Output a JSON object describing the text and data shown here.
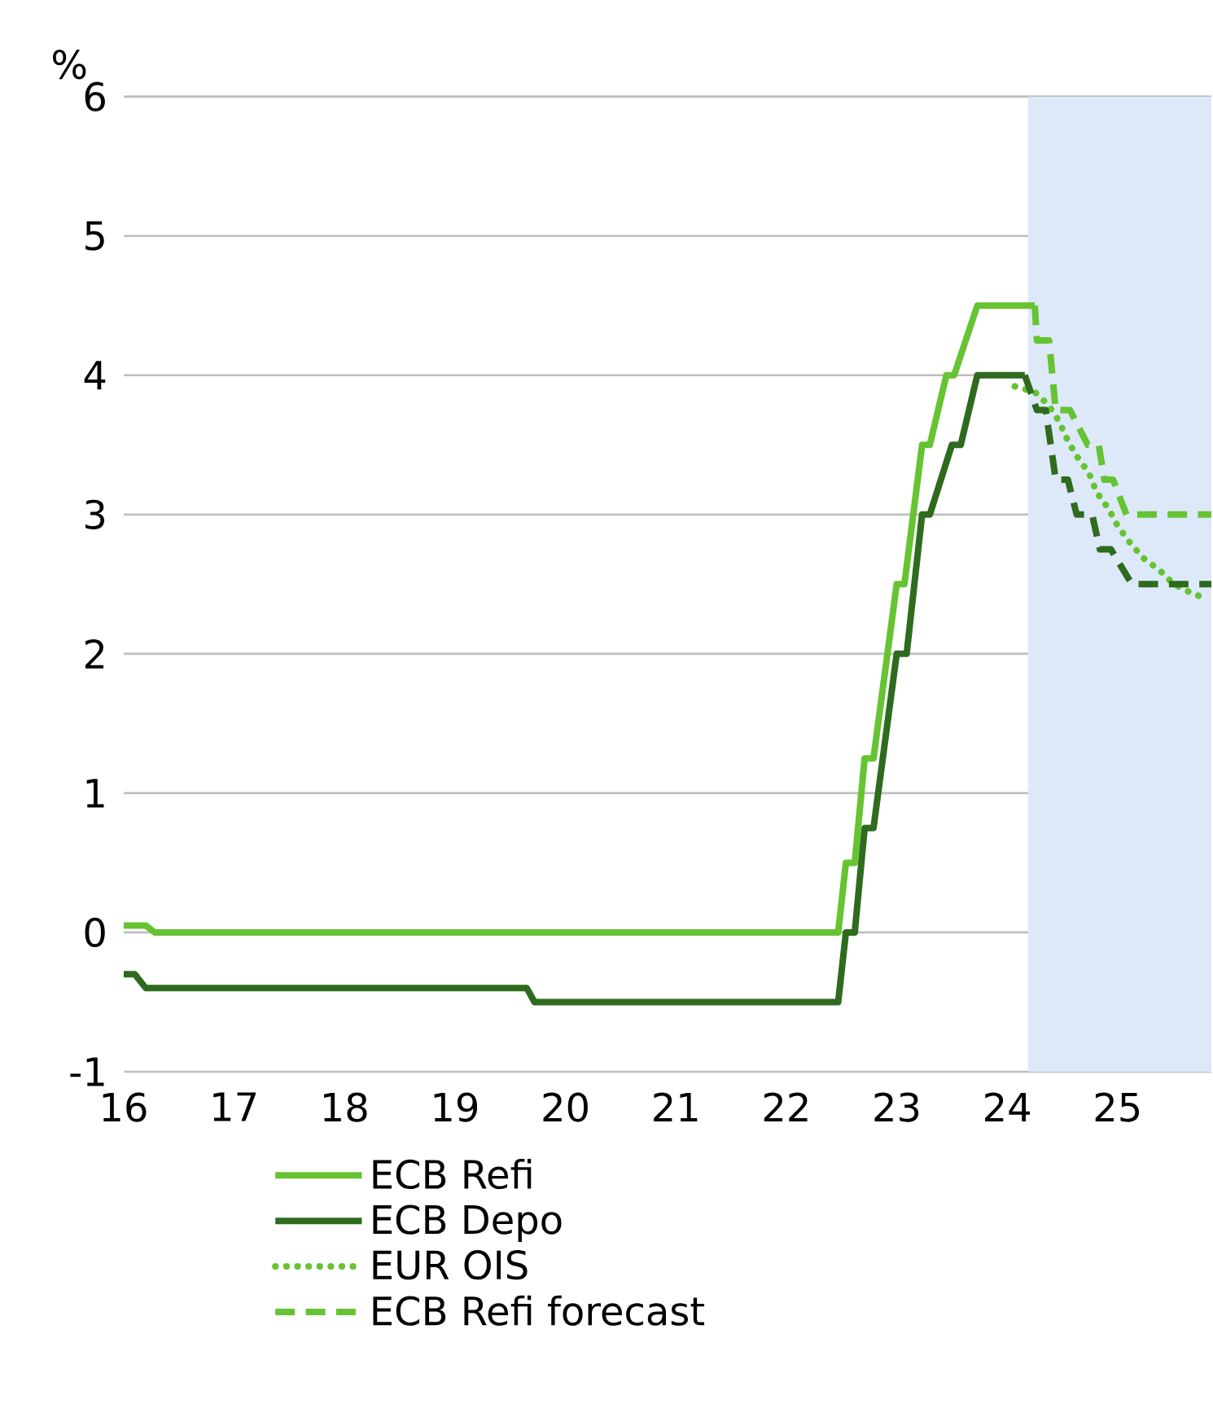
{
  "chart_data": {
    "type": "line",
    "ylabel": "%",
    "xlim": [
      16,
      25.85
    ],
    "ylim": [
      -1,
      6
    ],
    "xticks": [
      16,
      17,
      18,
      19,
      20,
      21,
      22,
      23,
      24,
      25
    ],
    "yticks": [
      -1,
      0,
      1,
      2,
      3,
      4,
      5,
      6
    ],
    "grid": "y",
    "legend": "bottom",
    "bands": [
      {
        "axis": "x",
        "from": 24.19,
        "to": 25.85,
        "color": "#dde9f9"
      }
    ],
    "series": [
      {
        "name": "ECB Refi",
        "color": "#66c332",
        "line_style": "solid",
        "x": [
          16.0,
          16.2,
          16.28,
          22.47,
          22.54,
          22.62,
          22.71,
          22.79,
          23.0,
          23.07,
          23.23,
          23.3,
          23.45,
          23.52,
          23.73,
          24.25
        ],
        "values": [
          0.05,
          0.05,
          0,
          0,
          0.5,
          0.5,
          1.25,
          1.25,
          2.5,
          2.5,
          3.5,
          3.5,
          4.0,
          4.0,
          4.5,
          4.5
        ]
      },
      {
        "name": "ECB Depo",
        "color": "#2e6b1e",
        "line_style": "solid",
        "x": [
          16.0,
          16.1,
          16.2,
          19.65,
          19.72,
          22.47,
          22.54,
          22.62,
          22.71,
          22.79,
          23.0,
          23.09,
          23.23,
          23.3,
          23.5,
          23.58,
          23.73,
          24.16
        ],
        "values": [
          -0.3,
          -0.3,
          -0.4,
          -0.4,
          -0.5,
          -0.5,
          0,
          0,
          0.75,
          0.75,
          2.0,
          2.0,
          3.0,
          3.0,
          3.5,
          3.5,
          4.0,
          4.0
        ]
      },
      {
        "name": "EUR OIS",
        "color": "#66c332",
        "line_style": "dotted",
        "x": [
          24.07,
          24.25,
          24.37,
          24.47,
          24.55,
          24.63,
          24.74,
          24.81,
          24.92,
          25.0,
          25.11,
          25.23,
          25.38,
          25.51,
          25.66,
          25.82
        ],
        "values": [
          3.92,
          3.88,
          3.79,
          3.67,
          3.53,
          3.42,
          3.3,
          3.16,
          3.04,
          2.92,
          2.8,
          2.69,
          2.6,
          2.5,
          2.44,
          2.39
        ]
      },
      {
        "name": "ECB Refi forecast",
        "color": "#66c332",
        "line_style": "dashed",
        "x": [
          24.25,
          24.27,
          24.38,
          24.44,
          24.57,
          24.73,
          24.83,
          24.88,
          24.96,
          25.08,
          25.85
        ],
        "values": [
          4.5,
          4.25,
          4.25,
          3.75,
          3.75,
          3.5,
          3.5,
          3.25,
          3.25,
          3.0,
          3.0
        ]
      },
      {
        "color": "#2e6b1e",
        "line_style": "dashed",
        "x": [
          24.16,
          24.27,
          24.35,
          24.44,
          24.55,
          24.63,
          24.77,
          24.84,
          24.94,
          25.13,
          25.85
        ],
        "values": [
          4.0,
          3.75,
          3.75,
          3.25,
          3.25,
          3.0,
          3.0,
          2.75,
          2.75,
          2.5,
          2.5
        ]
      }
    ]
  }
}
